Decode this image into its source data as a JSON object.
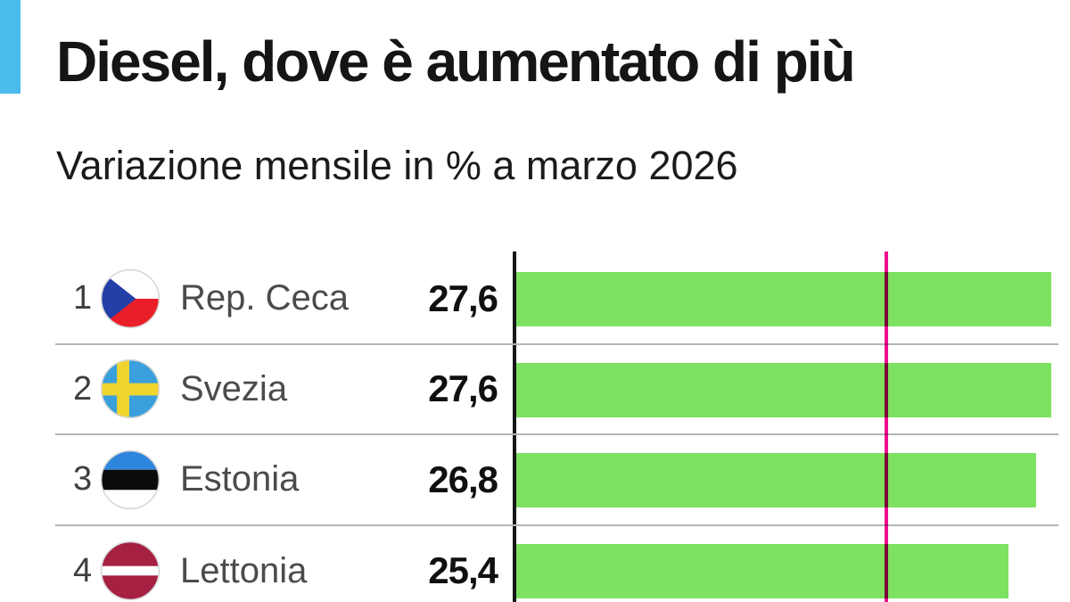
{
  "header": {
    "title": "Diesel, dove è aumentato di più",
    "subtitle": "Variazione mensile in % a marzo 2026"
  },
  "colors": {
    "accent_blue": "#49bceb",
    "bar_green": "#7de25f",
    "reference_line_pink": "#f00c8e",
    "axis_black": "#161717",
    "divider_gray": "#b5b5b5"
  },
  "rows": [
    {
      "rank": "1",
      "flag_icon": "czech-republic-flag-icon",
      "name": "Rep. Ceca",
      "value": "27,6"
    },
    {
      "rank": "2",
      "flag_icon": "sweden-flag-icon",
      "name": "Svezia",
      "value": "27,6"
    },
    {
      "rank": "3",
      "flag_icon": "estonia-flag-icon",
      "name": "Estonia",
      "value": "26,8"
    },
    {
      "rank": "4",
      "flag_icon": "latvia-flag-icon",
      "name": "Lettonia",
      "value": "25,4"
    }
  ],
  "chart_data": {
    "type": "bar",
    "orientation": "horizontal",
    "title": "Diesel, dove è aumentato di più",
    "subtitle": "Variazione mensile in % a marzo 2026",
    "unit": "%",
    "categories": [
      "Rep. Ceca",
      "Svezia",
      "Estonia",
      "Lettonia"
    ],
    "ranks": [
      1,
      2,
      3,
      4
    ],
    "values": [
      27.6,
      27.6,
      26.8,
      25.4
    ],
    "value_labels": [
      "27,6",
      "27,6",
      "26,8",
      "25,4"
    ],
    "xlim": [
      0,
      28.4
    ],
    "grid": false,
    "legend": false,
    "reference_line": {
      "value": 19.1,
      "color": "#f00c8e",
      "label": ""
    }
  }
}
